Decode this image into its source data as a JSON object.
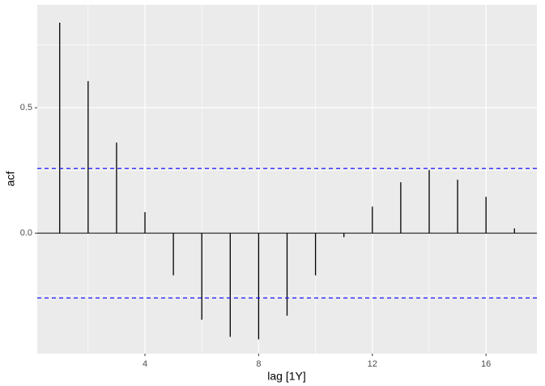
{
  "chart_data": {
    "type": "bar",
    "x_label": "lag [1Y]",
    "y_label": "acf",
    "x": [
      1,
      2,
      3,
      4,
      5,
      6,
      7,
      8,
      9,
      10,
      11,
      12,
      13,
      14,
      15,
      16,
      17
    ],
    "values": [
      0.839,
      0.606,
      0.361,
      0.084,
      -0.168,
      -0.345,
      -0.413,
      -0.423,
      -0.329,
      -0.168,
      -0.016,
      0.106,
      0.203,
      0.252,
      0.213,
      0.145,
      0.019
    ],
    "color": "#000000",
    "xlim": [
      0.21,
      17.79
    ],
    "ylim": [
      -0.48,
      0.91
    ],
    "xticks": [
      4,
      8,
      12,
      16
    ],
    "yticks": [
      {
        "value": 0,
        "label": "0.0"
      },
      0.5
    ],
    "x_minor_grid": [
      2,
      6,
      10,
      14
    ],
    "y_minor_grid": [
      -0.25,
      0.25,
      0.75
    ],
    "grid": true,
    "conf_limits": [
      0.258,
      -0.258
    ],
    "conf_color": "#0000ff"
  }
}
